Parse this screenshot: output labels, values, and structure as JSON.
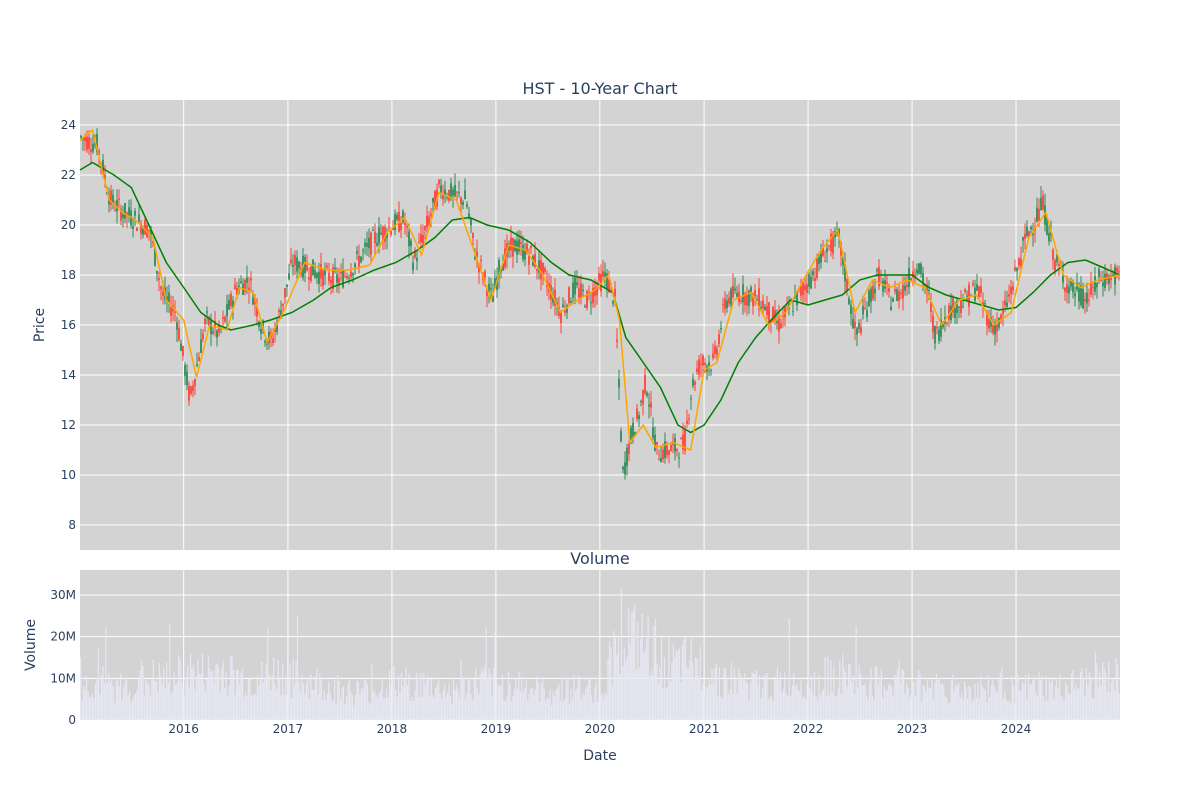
{
  "chart_data": [
    {
      "type": "candlestick",
      "title": "HST - 10-Year Chart",
      "xlabel": "",
      "ylabel": "Price",
      "ylim": [
        7,
        25
      ],
      "xlim": [
        "2015-01-02",
        "2024-12-31"
      ],
      "yticks": [
        "8",
        "10",
        "12",
        "14",
        "16",
        "18",
        "20",
        "22",
        "24"
      ],
      "grid": true,
      "legend": "none",
      "background": "#d3d3d3",
      "colors": {
        "increasing": "#2e8b57",
        "decreasing": "#ff4136",
        "ma_short": "#ffa500",
        "ma_long": "#008000"
      },
      "close_series": {
        "x": [
          "2015-01-02",
          "2015-03-01",
          "2015-04-15",
          "2015-06-01",
          "2015-07-15",
          "2015-09-01",
          "2015-10-15",
          "2015-12-01",
          "2016-01-20",
          "2016-02-15",
          "2016-03-15",
          "2016-05-01",
          "2016-07-01",
          "2016-08-15",
          "2016-10-01",
          "2016-11-01",
          "2016-12-01",
          "2017-01-15",
          "2017-03-01",
          "2017-05-01",
          "2017-07-01",
          "2017-09-01",
          "2017-11-01",
          "2018-01-01",
          "2018-02-10",
          "2018-03-15",
          "2018-05-01",
          "2018-06-15",
          "2018-08-01",
          "2018-09-15",
          "2018-10-15",
          "2018-12-15",
          "2019-01-15",
          "2019-03-01",
          "2019-05-01",
          "2019-06-15",
          "2019-08-15",
          "2019-10-01",
          "2019-11-15",
          "2020-01-15",
          "2020-02-20",
          "2020-03-18",
          "2020-04-15",
          "2020-05-15",
          "2020-06-08",
          "2020-07-15",
          "2020-09-01",
          "2020-10-20",
          "2020-11-15",
          "2020-12-15",
          "2021-02-01",
          "2021-03-15",
          "2021-05-01",
          "2021-07-15",
          "2021-09-15",
          "2021-11-15",
          "2022-01-15",
          "2022-03-01",
          "2022-04-15",
          "2022-06-15",
          "2022-07-15",
          "2022-09-01",
          "2022-10-15",
          "2022-12-01",
          "2023-01-15",
          "2023-03-01",
          "2023-03-20",
          "2023-05-01",
          "2023-07-01",
          "2023-08-15",
          "2023-10-01",
          "2023-11-01",
          "2023-12-15",
          "2024-02-01",
          "2024-04-01",
          "2024-05-15",
          "2024-07-01",
          "2024-09-01",
          "2024-10-15",
          "2024-12-31"
        ],
        "y": [
          23.5,
          23.2,
          21.0,
          20.5,
          20.2,
          19.8,
          17.2,
          16.5,
          13.0,
          14.5,
          16.2,
          15.6,
          17.5,
          17.8,
          15.8,
          15.3,
          16.5,
          18.5,
          18.3,
          18.0,
          17.8,
          18.6,
          19.5,
          20.0,
          20.2,
          18.5,
          20.0,
          21.5,
          21.2,
          21.0,
          19.0,
          17.0,
          18.5,
          19.2,
          18.8,
          18.0,
          16.5,
          17.5,
          17.0,
          18.0,
          17.0,
          10.0,
          11.5,
          12.5,
          13.8,
          10.9,
          11.0,
          11.2,
          13.5,
          14.5,
          14.5,
          17.0,
          17.3,
          17.0,
          16.0,
          17.0,
          18.0,
          19.0,
          19.5,
          15.5,
          16.5,
          18.0,
          17.0,
          17.5,
          18.5,
          17.0,
          15.5,
          16.5,
          17.0,
          17.5,
          16.0,
          16.0,
          17.5,
          19.5,
          20.8,
          18.5,
          17.5,
          17.0,
          17.8,
          18.0
        ]
      },
      "ma_short": {
        "x": [
          "2015-01-02",
          "2015-02-15",
          "2015-04-15",
          "2015-06-01",
          "2015-07-15",
          "2015-09-15",
          "2015-11-01",
          "2016-01-01",
          "2016-02-15",
          "2016-04-01",
          "2016-06-01",
          "2016-07-15",
          "2016-09-01",
          "2016-10-20",
          "2016-12-15",
          "2017-03-01",
          "2017-05-15",
          "2017-08-01",
          "2017-10-15",
          "2017-12-15",
          "2018-02-15",
          "2018-04-15",
          "2018-06-15",
          "2018-08-15",
          "2018-10-15",
          "2018-12-15",
          "2019-02-15",
          "2019-04-15",
          "2019-06-15",
          "2019-08-15",
          "2019-10-15",
          "2019-12-15",
          "2020-02-01",
          "2020-03-10",
          "2020-04-15",
          "2020-06-01",
          "2020-07-15",
          "2020-09-15",
          "2020-11-15",
          "2021-01-01",
          "2021-02-15",
          "2021-04-15",
          "2021-06-15",
          "2021-08-15",
          "2021-10-15",
          "2021-12-15",
          "2022-02-15",
          "2022-04-15",
          "2022-06-15",
          "2022-08-15",
          "2022-10-15",
          "2022-12-15",
          "2023-02-15",
          "2023-04-15",
          "2023-06-15",
          "2023-08-15",
          "2023-10-15",
          "2023-12-15",
          "2024-02-15",
          "2024-04-15",
          "2024-06-15",
          "2024-08-15",
          "2024-10-15",
          "2024-12-31"
        ],
        "y": [
          23.4,
          23.8,
          21.0,
          20.5,
          20.2,
          19.5,
          17.0,
          16.2,
          13.9,
          16.0,
          15.8,
          17.5,
          17.3,
          15.3,
          16.5,
          18.5,
          18.2,
          18.2,
          18.4,
          19.7,
          20.3,
          18.8,
          21.3,
          21.0,
          19.0,
          17.0,
          19.2,
          19.0,
          18.0,
          16.5,
          17.0,
          17.4,
          18.0,
          16.2,
          11.3,
          12.0,
          11.1,
          11.3,
          11.0,
          14.2,
          14.5,
          17.0,
          17.3,
          16.0,
          16.5,
          17.8,
          19.0,
          19.8,
          16.5,
          17.8,
          17.5,
          17.8,
          17.5,
          16.0,
          17.0,
          17.2,
          16.0,
          16.5,
          19.5,
          20.5,
          18.0,
          17.5,
          17.8,
          18.0
        ]
      },
      "ma_long": {
        "x": [
          "2015-01-02",
          "2015-02-15",
          "2015-05-01",
          "2015-07-01",
          "2015-09-01",
          "2015-11-01",
          "2016-01-01",
          "2016-03-01",
          "2016-05-01",
          "2016-06-15",
          "2016-09-01",
          "2016-11-01",
          "2017-01-15",
          "2017-04-01",
          "2017-06-01",
          "2017-08-15",
          "2017-11-01",
          "2018-01-15",
          "2018-04-01",
          "2018-06-01",
          "2018-08-01",
          "2018-10-01",
          "2018-12-01",
          "2019-02-15",
          "2019-05-01",
          "2019-07-15",
          "2019-09-15",
          "2019-12-01",
          "2020-02-15",
          "2020-04-01",
          "2020-06-01",
          "2020-08-01",
          "2020-10-01",
          "2020-11-15",
          "2021-01-01",
          "2021-03-01",
          "2021-05-01",
          "2021-07-01",
          "2021-09-01",
          "2021-11-01",
          "2022-01-01",
          "2022-03-01",
          "2022-05-01",
          "2022-07-01",
          "2022-09-01",
          "2022-11-01",
          "2023-01-01",
          "2023-03-01",
          "2023-05-01",
          "2023-07-01",
          "2023-09-01",
          "2023-11-01",
          "2024-01-01",
          "2024-03-01",
          "2024-05-01",
          "2024-07-01",
          "2024-09-01",
          "2024-11-01",
          "2024-12-31"
        ],
        "y": [
          22.2,
          22.5,
          22.0,
          21.5,
          20.0,
          18.5,
          17.5,
          16.5,
          16.0,
          15.8,
          16.0,
          16.2,
          16.5,
          17.0,
          17.5,
          17.8,
          18.2,
          18.5,
          19.0,
          19.5,
          20.2,
          20.3,
          20.0,
          19.8,
          19.3,
          18.5,
          18.0,
          17.8,
          17.3,
          15.5,
          14.5,
          13.5,
          12.0,
          11.7,
          12.0,
          13.0,
          14.5,
          15.5,
          16.3,
          17.0,
          16.8,
          17.0,
          17.2,
          17.8,
          18.0,
          18.0,
          18.0,
          17.5,
          17.2,
          17.0,
          16.8,
          16.6,
          16.7,
          17.3,
          18.0,
          18.5,
          18.6,
          18.3,
          18.0
        ]
      }
    },
    {
      "type": "bar",
      "title": "Volume",
      "xlabel": "Date",
      "ylabel": "Volume",
      "ylim": [
        0,
        36000000
      ],
      "yticks": [
        "0",
        "10M",
        "20M",
        "30M"
      ],
      "xticks": [
        "2016",
        "2017",
        "2018",
        "2019",
        "2020",
        "2021",
        "2022",
        "2023",
        "2024"
      ],
      "grid": true,
      "legend": "none",
      "background": "#d3d3d3",
      "bar_color": "#e8e8f5",
      "x": [
        "2015-01-15",
        "2015-03-15",
        "2015-05-15",
        "2015-07-15",
        "2015-09-15",
        "2015-11-15",
        "2016-01-15",
        "2016-03-15",
        "2016-05-15",
        "2016-07-15",
        "2016-09-15",
        "2016-11-15",
        "2017-01-15",
        "2017-03-15",
        "2017-05-15",
        "2017-07-15",
        "2017-09-15",
        "2017-11-15",
        "2018-01-15",
        "2018-03-15",
        "2018-05-15",
        "2018-07-15",
        "2018-09-15",
        "2018-11-15",
        "2019-01-15",
        "2019-03-15",
        "2019-05-15",
        "2019-07-15",
        "2019-09-15",
        "2019-11-15",
        "2020-01-15",
        "2020-03-15",
        "2020-05-15",
        "2020-07-15",
        "2020-09-15",
        "2020-11-15",
        "2021-01-15",
        "2021-03-15",
        "2021-05-15",
        "2021-07-15",
        "2021-09-15",
        "2021-11-15",
        "2022-01-15",
        "2022-03-15",
        "2022-05-15",
        "2022-07-15",
        "2022-09-15",
        "2022-11-15",
        "2023-01-15",
        "2023-03-15",
        "2023-05-15",
        "2023-07-15",
        "2023-09-15",
        "2023-11-15",
        "2024-01-15",
        "2024-03-15",
        "2024-05-15",
        "2024-07-15",
        "2024-09-15",
        "2024-11-15"
      ],
      "values": [
        9000000,
        10000000,
        8500000,
        9000000,
        11000000,
        10500000,
        13000000,
        12000000,
        13500000,
        11000000,
        10000000,
        12500000,
        11000000,
        10500000,
        9000000,
        8000000,
        7500000,
        8500000,
        10000000,
        9500000,
        9000000,
        8000000,
        8500000,
        10500000,
        9000000,
        10000000,
        8000000,
        7500000,
        8500000,
        8000000,
        9000000,
        25000000,
        20000000,
        18000000,
        14000000,
        15000000,
        13000000,
        11000000,
        10000000,
        9000000,
        9500000,
        11000000,
        10000000,
        11500000,
        12000000,
        10000000,
        9500000,
        10000000,
        9000000,
        9500000,
        8500000,
        8000000,
        8500000,
        9500000,
        8000000,
        9000000,
        8000000,
        9000000,
        10000000,
        11000000
      ]
    }
  ]
}
